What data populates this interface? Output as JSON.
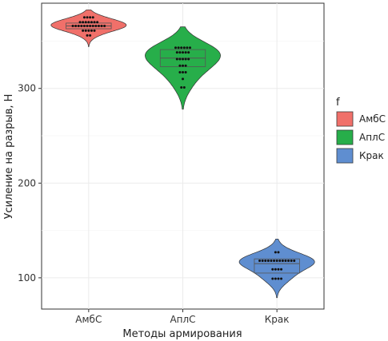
{
  "chart_data": {
    "type": "violin",
    "xlabel": "Методы армирования",
    "ylabel": "Усиление на разрыв, Н",
    "ylim": [
      67,
      390
    ],
    "yticks": [
      100,
      200,
      300
    ],
    "grid": true,
    "legend": {
      "title": "f",
      "position": "right",
      "entries": [
        {
          "label": "АмбС",
          "color": "#F0706A"
        },
        {
          "label": "АплС",
          "color": "#27AE4A"
        },
        {
          "label": "Крак",
          "color": "#5F8ED0"
        }
      ]
    },
    "categories": [
      "АмбС",
      "АплС",
      "Крак"
    ],
    "series": [
      {
        "category": "АмбС",
        "color": "#F0706A",
        "violin_range": [
          344,
          383
        ],
        "box": {
          "q1": 363,
          "median": 366,
          "q3": 369
        },
        "points": [
          356,
          356,
          361,
          361,
          361,
          361,
          361,
          366,
          366,
          366,
          366,
          366,
          366,
          366,
          366,
          366,
          366,
          366,
          366,
          370,
          370,
          370,
          370,
          370,
          370,
          370,
          375,
          375,
          375,
          375
        ]
      },
      {
        "category": "АплС",
        "color": "#27AE4A",
        "violin_range": [
          278,
          365
        ],
        "box": {
          "q1": 323,
          "median": 332,
          "q3": 341
        },
        "points": [
          301,
          301,
          310,
          317,
          317,
          317,
          324,
          324,
          324,
          331,
          331,
          331,
          331,
          331,
          338,
          338,
          338,
          338,
          338,
          343,
          343,
          343,
          343,
          343,
          343
        ]
      },
      {
        "category": "Крак",
        "color": "#5F8ED0",
        "violin_range": [
          79,
          141
        ],
        "box": {
          "q1": 105,
          "median": 115,
          "q3": 120
        },
        "points": [
          99,
          99,
          99,
          99,
          109,
          109,
          109,
          109,
          118,
          118,
          118,
          118,
          118,
          118,
          118,
          118,
          118,
          118,
          118,
          118,
          118,
          127,
          127
        ]
      }
    ]
  }
}
